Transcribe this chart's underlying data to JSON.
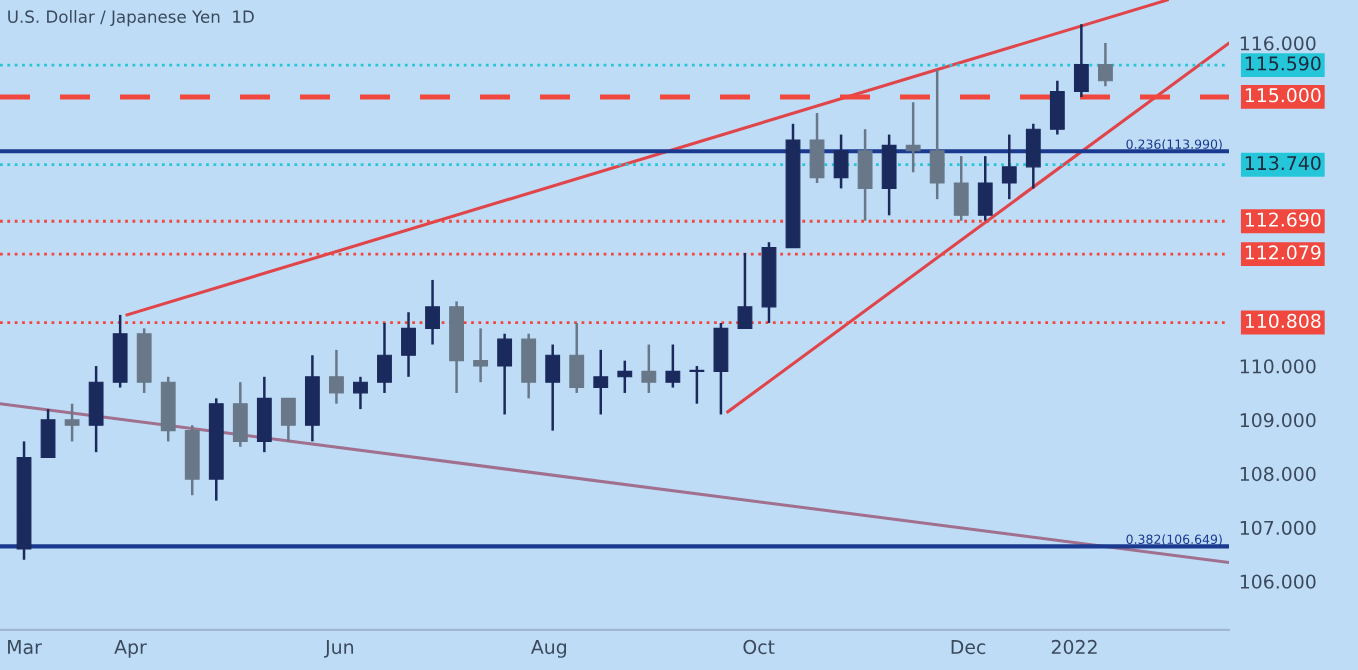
{
  "chart_data": {
    "type": "candlestick",
    "title": "U.S. Dollar / Japanese Yen  1D",
    "x": [
      "2021-03-01",
      "2021-03-08",
      "2021-03-15",
      "2021-03-22",
      "2021-03-29",
      "2021-04-05",
      "2021-04-12",
      "2021-04-19",
      "2021-04-26",
      "2021-05-03",
      "2021-05-10",
      "2021-05-17",
      "2021-05-24",
      "2021-05-31",
      "2021-06-07",
      "2021-06-14",
      "2021-06-21",
      "2021-06-28",
      "2021-07-05",
      "2021-07-12",
      "2021-07-19",
      "2021-07-26",
      "2021-08-02",
      "2021-08-09",
      "2021-08-16",
      "2021-08-23",
      "2021-08-30",
      "2021-09-06",
      "2021-09-13",
      "2021-09-20",
      "2021-09-27",
      "2021-10-04",
      "2021-10-11",
      "2021-10-18",
      "2021-10-25",
      "2021-11-01",
      "2021-11-08",
      "2021-11-15",
      "2021-11-22",
      "2021-11-29",
      "2021-12-06",
      "2021-12-13",
      "2021-12-20",
      "2021-12-27",
      "2022-01-03",
      "2022-01-10"
    ],
    "ohlc": [
      [
        106.6,
        108.6,
        106.4,
        108.3
      ],
      [
        108.3,
        109.2,
        108.3,
        109.0
      ],
      [
        109.0,
        109.3,
        108.6,
        108.9
      ],
      [
        108.9,
        110.0,
        108.4,
        109.7
      ],
      [
        109.7,
        110.95,
        109.6,
        110.6
      ],
      [
        110.6,
        110.7,
        109.5,
        109.7
      ],
      [
        109.7,
        109.8,
        108.6,
        108.8
      ],
      [
        108.8,
        108.9,
        107.6,
        107.9
      ],
      [
        107.9,
        109.4,
        107.5,
        109.3
      ],
      [
        109.3,
        109.7,
        108.5,
        108.6
      ],
      [
        108.6,
        109.8,
        108.4,
        109.4
      ],
      [
        109.4,
        109.4,
        108.6,
        108.9
      ],
      [
        108.9,
        110.2,
        108.6,
        109.8
      ],
      [
        109.8,
        110.3,
        109.3,
        109.5
      ],
      [
        109.5,
        109.8,
        109.2,
        109.7
      ],
      [
        109.7,
        110.8,
        109.5,
        110.2
      ],
      [
        110.2,
        111.0,
        109.8,
        110.7
      ],
      [
        110.7,
        111.6,
        110.4,
        111.1
      ],
      [
        111.1,
        111.2,
        109.5,
        110.1
      ],
      [
        110.1,
        110.7,
        109.7,
        110.0
      ],
      [
        110.0,
        110.6,
        109.1,
        110.5
      ],
      [
        110.5,
        110.6,
        109.4,
        109.7
      ],
      [
        109.7,
        110.4,
        108.8,
        110.2
      ],
      [
        110.2,
        110.8,
        109.5,
        109.6
      ],
      [
        109.6,
        110.3,
        109.1,
        109.8
      ],
      [
        109.8,
        110.1,
        109.5,
        109.9
      ],
      [
        109.9,
        110.4,
        109.5,
        109.7
      ],
      [
        109.7,
        110.4,
        109.6,
        109.9
      ],
      [
        109.9,
        110.0,
        109.3,
        109.9
      ],
      [
        109.9,
        110.8,
        109.1,
        110.7
      ],
      [
        110.7,
        112.1,
        110.7,
        111.1
      ],
      [
        111.1,
        112.3,
        110.8,
        112.2
      ],
      [
        112.2,
        114.5,
        112.2,
        114.2
      ],
      [
        114.2,
        114.7,
        113.4,
        113.5
      ],
      [
        113.5,
        114.3,
        113.3,
        114.0
      ],
      [
        114.0,
        114.4,
        112.7,
        113.3
      ],
      [
        113.3,
        114.3,
        112.8,
        114.1
      ],
      [
        114.1,
        114.9,
        113.6,
        114.0
      ],
      [
        114.0,
        115.5,
        113.1,
        113.4
      ],
      [
        113.4,
        113.9,
        112.7,
        112.8
      ],
      [
        112.8,
        113.9,
        112.7,
        113.4
      ],
      [
        113.4,
        114.3,
        113.1,
        113.7
      ],
      [
        113.7,
        114.5,
        113.3,
        114.4
      ],
      [
        114.4,
        115.3,
        114.3,
        115.1
      ],
      [
        115.1,
        116.35,
        115.0,
        115.6
      ],
      [
        115.6,
        116.0,
        115.2,
        115.3
      ]
    ],
    "colors": [
      "#1b2a5c",
      "#1b2a5c",
      "#687888",
      "#1b2a5c",
      "#1b2a5c",
      "#687888",
      "#687888",
      "#687888",
      "#1b2a5c",
      "#687888",
      "#1b2a5c",
      "#687888",
      "#1b2a5c",
      "#687888",
      "#1b2a5c",
      "#1b2a5c",
      "#1b2a5c",
      "#1b2a5c",
      "#687888",
      "#687888",
      "#1b2a5c",
      "#687888",
      "#1b2a5c",
      "#687888",
      "#1b2a5c",
      "#1b2a5c",
      "#687888",
      "#1b2a5c",
      "#1b2a5c",
      "#1b2a5c",
      "#1b2a5c",
      "#1b2a5c",
      "#1b2a5c",
      "#687888",
      "#1b2a5c",
      "#687888",
      "#1b2a5c",
      "#687888",
      "#687888",
      "#687888",
      "#1b2a5c",
      "#1b2a5c",
      "#1b2a5c",
      "#1b2a5c",
      "#1b2a5c",
      "#687888"
    ],
    "series": [
      {
        "type": "line",
        "color": "#e0454a",
        "x": [
          "2021-03-31",
          "2022-01-28"
        ],
        "values": [
          110.95,
          116.8
        ]
      },
      {
        "type": "line",
        "color": "#e0454a",
        "x": [
          "2021-09-22",
          "2022-02-15"
        ],
        "values": [
          109.15,
          116.0
        ]
      },
      {
        "type": "line",
        "color": "#a0708e",
        "x": [
          "2021-02-22",
          "2022-02-15"
        ],
        "values": [
          109.3,
          106.35
        ]
      }
    ],
    "ref_lines": [
      {
        "axis": "y",
        "value": 115.59,
        "label": "115.590",
        "color": "#26c6da",
        "line_style": "dotted"
      },
      {
        "axis": "y",
        "value": 115.0,
        "label": "115.000",
        "color": "#f0483e",
        "line_style": "dashed"
      },
      {
        "axis": "y",
        "value": 113.99,
        "label": "0.236(113.990)",
        "color": "#1a3a8f",
        "line_style": "solid"
      },
      {
        "axis": "y",
        "value": 113.74,
        "label": "113.740",
        "color": "#26c6da",
        "line_style": "dotted"
      },
      {
        "axis": "y",
        "value": 112.69,
        "label": "112.690",
        "color": "#f0483e",
        "line_style": "dotted"
      },
      {
        "axis": "y",
        "value": 112.079,
        "label": "112.079",
        "color": "#f0483e",
        "line_style": "dotted"
      },
      {
        "axis": "y",
        "value": 110.808,
        "label": "110.808",
        "color": "#f0483e",
        "line_style": "dotted"
      },
      {
        "axis": "y",
        "value": 106.649,
        "label": "0.382(106.649)",
        "color": "#1a3a8f",
        "line_style": "solid"
      }
    ],
    "xlim": [
      "2021-02-22",
      "2022-02-15"
    ],
    "xticks": [
      {
        "value": "2021-03-01",
        "label": "Mar"
      },
      {
        "value": "2021-04-01",
        "label": "Apr"
      },
      {
        "value": "2021-06-01",
        "label": "Jun"
      },
      {
        "value": "2021-08-01",
        "label": "Aug"
      },
      {
        "value": "2021-10-01",
        "label": "Oct"
      },
      {
        "value": "2021-12-01",
        "label": "Dec"
      },
      {
        "value": "2022-01-01",
        "label": "2022"
      }
    ],
    "ylim": [
      105.1,
      116.8
    ],
    "yticks": [
      {
        "value": 106,
        "label": "106.000"
      },
      {
        "value": 107,
        "label": "107.000"
      },
      {
        "value": 108,
        "label": "108.000"
      },
      {
        "value": 109,
        "label": "109.000"
      },
      {
        "value": 110,
        "label": "110.000"
      },
      {
        "value": 116,
        "label": "116.000"
      }
    ],
    "grid": false
  }
}
